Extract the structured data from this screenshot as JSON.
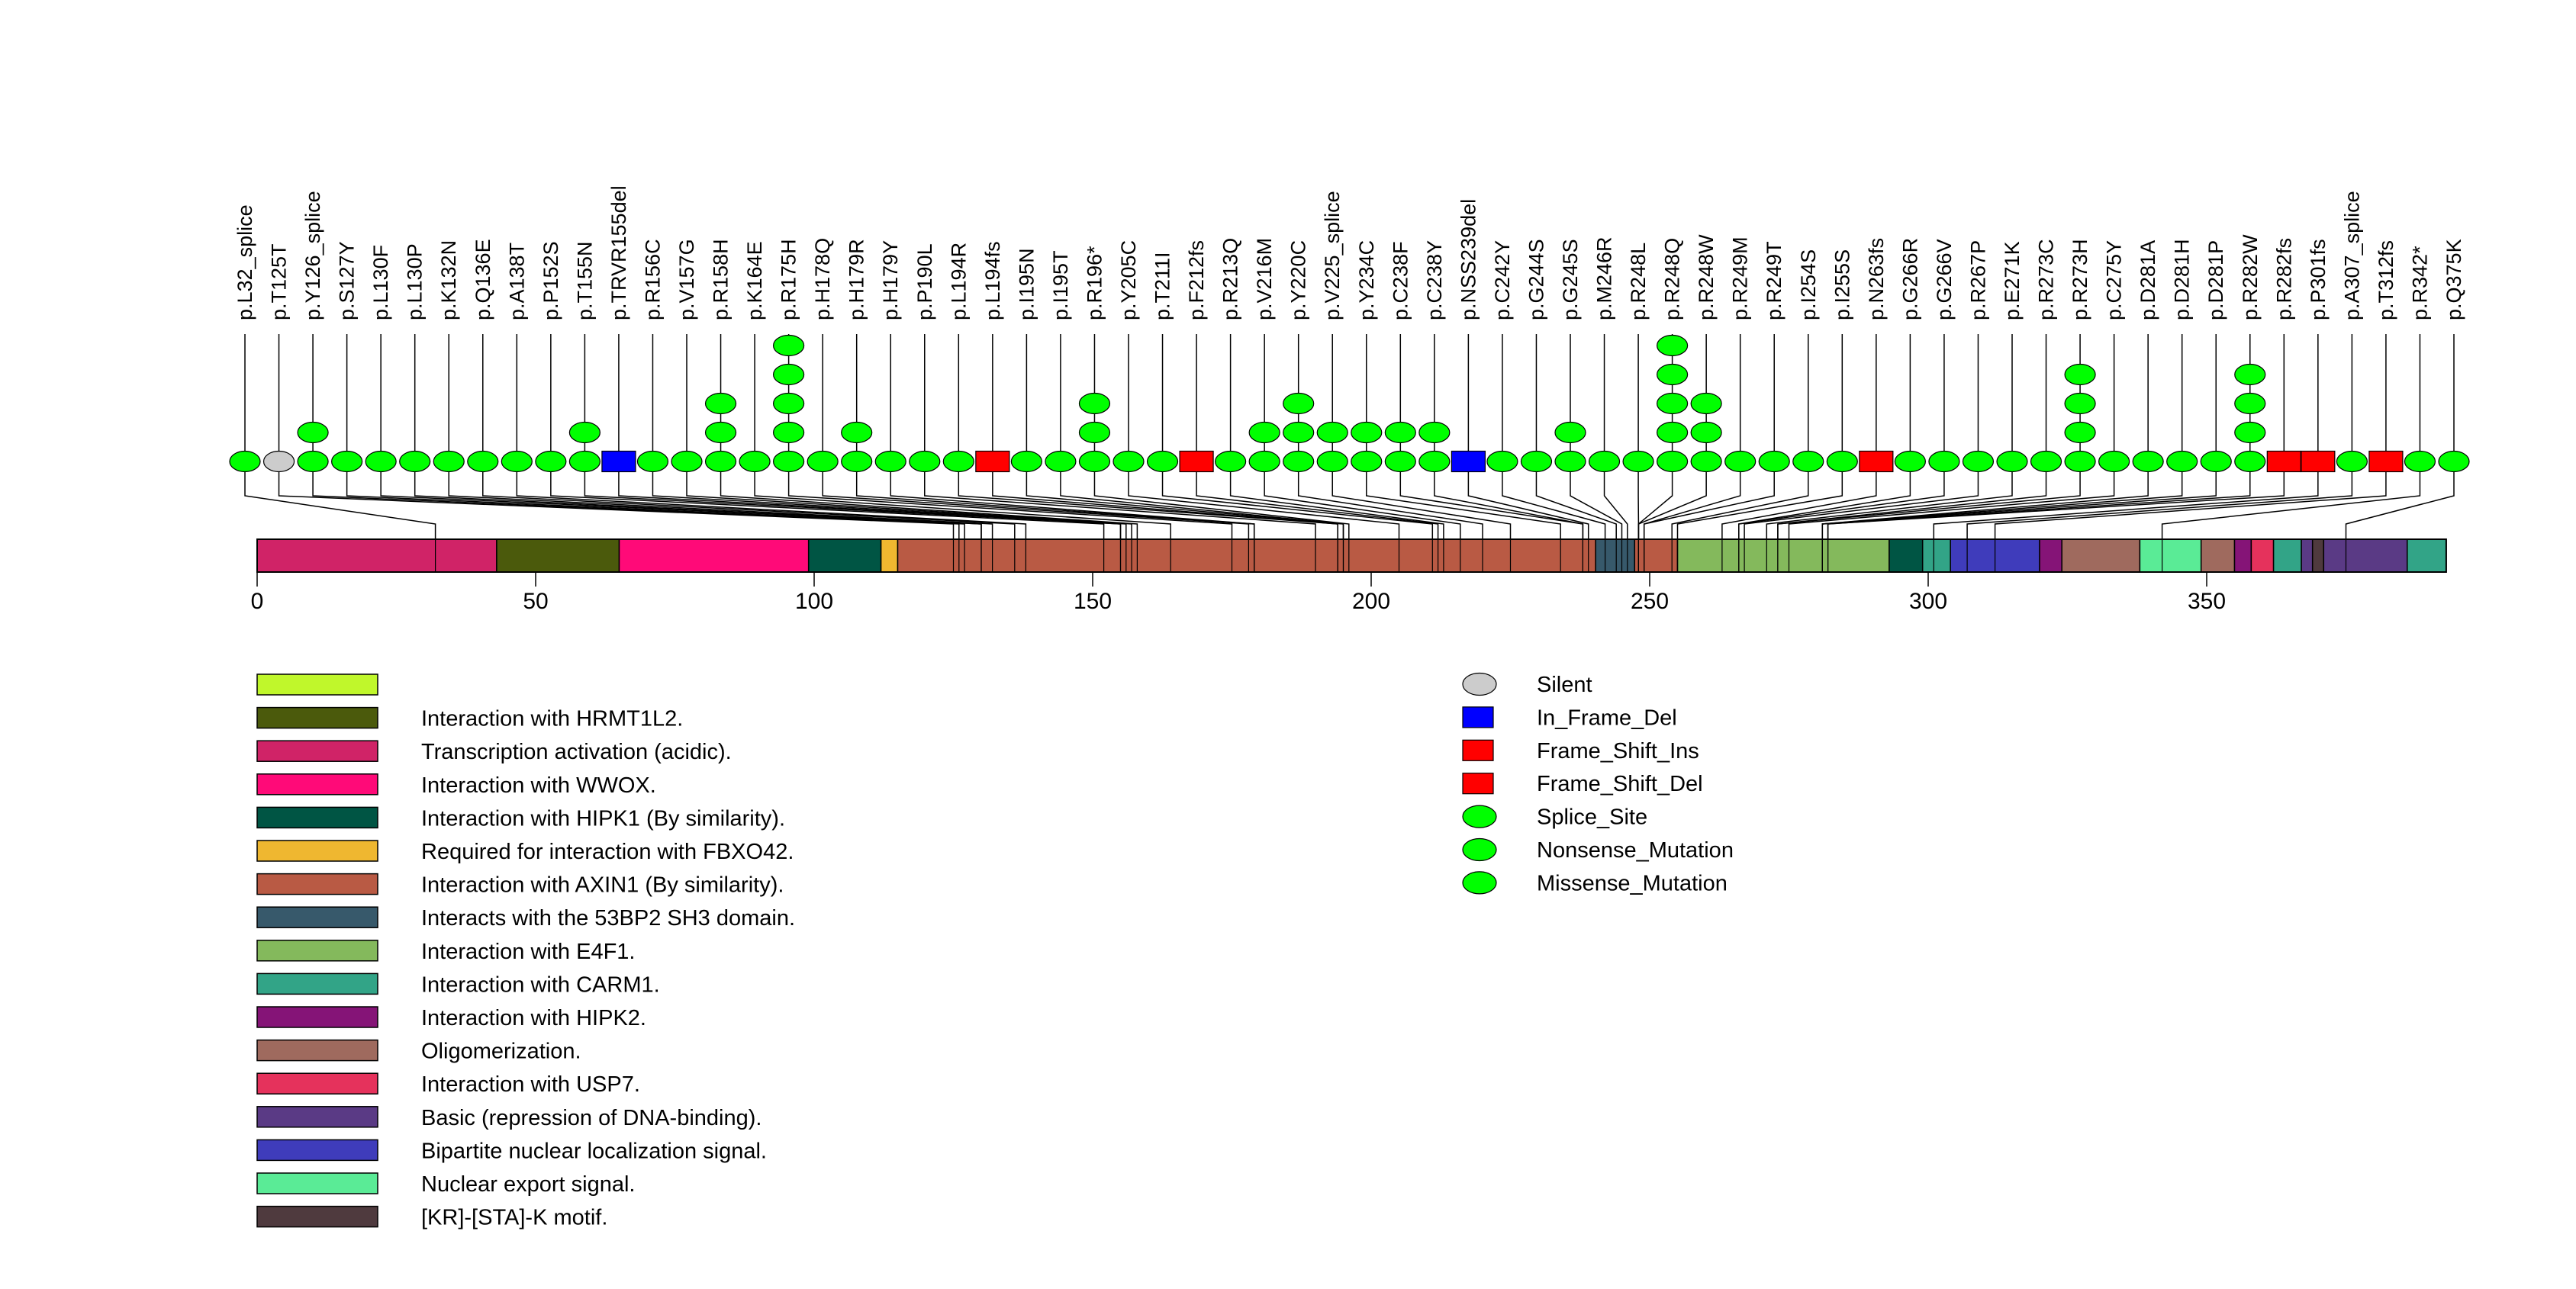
{
  "chart_data": {
    "type": "lollipop",
    "title": "",
    "protein_length": 393,
    "xlabel": "",
    "ylabel": "",
    "xlim": [
      0,
      393
    ],
    "x_ticks": [
      0,
      50,
      100,
      150,
      200,
      250,
      300,
      350
    ],
    "mutation_type_colors": {
      "Silent": "#cccccc",
      "In_Frame_Del": "#0000ff",
      "Frame_Shift_Ins": "#ff0000",
      "Frame_Shift_Del": "#ff0000",
      "Splice_Site": "#00ff00",
      "Nonsense_Mutation": "#00ff00",
      "Missense_Mutation": "#00ff00"
    },
    "mutation_type_shapes": {
      "Silent": "ellipse",
      "In_Frame_Del": "square",
      "Frame_Shift_Ins": "square",
      "Frame_Shift_Del": "square",
      "Splice_Site": "ellipse",
      "Nonsense_Mutation": "ellipse",
      "Missense_Mutation": "ellipse"
    },
    "mutations": [
      {
        "label": "p.L32_splice",
        "position": 32,
        "count": 1,
        "type": "Splice_Site"
      },
      {
        "label": "p.T125T",
        "position": 125,
        "count": 1,
        "type": "Silent"
      },
      {
        "label": "p.Y126_splice",
        "position": 126,
        "count": 2,
        "type": "Splice_Site"
      },
      {
        "label": "p.S127Y",
        "position": 127,
        "count": 1,
        "type": "Missense_Mutation"
      },
      {
        "label": "p.L130F",
        "position": 130,
        "count": 1,
        "type": "Missense_Mutation"
      },
      {
        "label": "p.L130P",
        "position": 130,
        "count": 1,
        "type": "Missense_Mutation"
      },
      {
        "label": "p.K132N",
        "position": 132,
        "count": 1,
        "type": "Missense_Mutation"
      },
      {
        "label": "p.Q136E",
        "position": 136,
        "count": 1,
        "type": "Missense_Mutation"
      },
      {
        "label": "p.A138T",
        "position": 138,
        "count": 1,
        "type": "Missense_Mutation"
      },
      {
        "label": "p.P152S",
        "position": 152,
        "count": 1,
        "type": "Missense_Mutation"
      },
      {
        "label": "p.T155N",
        "position": 155,
        "count": 2,
        "type": "Missense_Mutation"
      },
      {
        "label": "p.TRVR155del",
        "position": 155,
        "count": 1,
        "type": "In_Frame_Del"
      },
      {
        "label": "p.R156C",
        "position": 156,
        "count": 1,
        "type": "Missense_Mutation"
      },
      {
        "label": "p.V157G",
        "position": 157,
        "count": 1,
        "type": "Missense_Mutation"
      },
      {
        "label": "p.R158H",
        "position": 158,
        "count": 3,
        "type": "Missense_Mutation"
      },
      {
        "label": "p.K164E",
        "position": 164,
        "count": 1,
        "type": "Missense_Mutation"
      },
      {
        "label": "p.R175H",
        "position": 175,
        "count": 5,
        "type": "Missense_Mutation"
      },
      {
        "label": "p.H178Q",
        "position": 178,
        "count": 1,
        "type": "Missense_Mutation"
      },
      {
        "label": "p.H179R",
        "position": 179,
        "count": 2,
        "type": "Missense_Mutation"
      },
      {
        "label": "p.H179Y",
        "position": 179,
        "count": 1,
        "type": "Missense_Mutation"
      },
      {
        "label": "p.P190L",
        "position": 190,
        "count": 1,
        "type": "Missense_Mutation"
      },
      {
        "label": "p.L194R",
        "position": 194,
        "count": 1,
        "type": "Missense_Mutation"
      },
      {
        "label": "p.L194fs",
        "position": 194,
        "count": 1,
        "type": "Frame_Shift_Del"
      },
      {
        "label": "p.I195N",
        "position": 195,
        "count": 1,
        "type": "Missense_Mutation"
      },
      {
        "label": "p.I195T",
        "position": 195,
        "count": 1,
        "type": "Missense_Mutation"
      },
      {
        "label": "p.R196*",
        "position": 196,
        "count": 3,
        "type": "Nonsense_Mutation"
      },
      {
        "label": "p.Y205C",
        "position": 205,
        "count": 1,
        "type": "Missense_Mutation"
      },
      {
        "label": "p.T211I",
        "position": 211,
        "count": 1,
        "type": "Missense_Mutation"
      },
      {
        "label": "p.F212fs",
        "position": 212,
        "count": 1,
        "type": "Frame_Shift_Del"
      },
      {
        "label": "p.R213Q",
        "position": 213,
        "count": 1,
        "type": "Missense_Mutation"
      },
      {
        "label": "p.V216M",
        "position": 216,
        "count": 2,
        "type": "Missense_Mutation"
      },
      {
        "label": "p.Y220C",
        "position": 220,
        "count": 3,
        "type": "Missense_Mutation"
      },
      {
        "label": "p.V225_splice",
        "position": 225,
        "count": 2,
        "type": "Splice_Site"
      },
      {
        "label": "p.Y234C",
        "position": 234,
        "count": 2,
        "type": "Missense_Mutation"
      },
      {
        "label": "p.C238F",
        "position": 238,
        "count": 2,
        "type": "Missense_Mutation"
      },
      {
        "label": "p.C238Y",
        "position": 238,
        "count": 2,
        "type": "Missense_Mutation"
      },
      {
        "label": "p.NSS239del",
        "position": 239,
        "count": 1,
        "type": "In_Frame_Del"
      },
      {
        "label": "p.C242Y",
        "position": 242,
        "count": 1,
        "type": "Missense_Mutation"
      },
      {
        "label": "p.G244S",
        "position": 244,
        "count": 1,
        "type": "Missense_Mutation"
      },
      {
        "label": "p.G245S",
        "position": 245,
        "count": 2,
        "type": "Missense_Mutation"
      },
      {
        "label": "p.M246R",
        "position": 246,
        "count": 1,
        "type": "Missense_Mutation"
      },
      {
        "label": "p.R248L",
        "position": 248,
        "count": 1,
        "type": "Missense_Mutation"
      },
      {
        "label": "p.R248Q",
        "position": 248,
        "count": 5,
        "type": "Missense_Mutation"
      },
      {
        "label": "p.R248W",
        "position": 248,
        "count": 3,
        "type": "Missense_Mutation"
      },
      {
        "label": "p.R249M",
        "position": 249,
        "count": 1,
        "type": "Missense_Mutation"
      },
      {
        "label": "p.R249T",
        "position": 249,
        "count": 1,
        "type": "Missense_Mutation"
      },
      {
        "label": "p.I254S",
        "position": 254,
        "count": 1,
        "type": "Missense_Mutation"
      },
      {
        "label": "p.I255S",
        "position": 255,
        "count": 1,
        "type": "Missense_Mutation"
      },
      {
        "label": "p.N263fs",
        "position": 263,
        "count": 1,
        "type": "Frame_Shift_Ins"
      },
      {
        "label": "p.G266R",
        "position": 266,
        "count": 1,
        "type": "Missense_Mutation"
      },
      {
        "label": "p.G266V",
        "position": 266,
        "count": 1,
        "type": "Missense_Mutation"
      },
      {
        "label": "p.R267P",
        "position": 267,
        "count": 1,
        "type": "Missense_Mutation"
      },
      {
        "label": "p.E271K",
        "position": 271,
        "count": 1,
        "type": "Missense_Mutation"
      },
      {
        "label": "p.R273C",
        "position": 273,
        "count": 1,
        "type": "Missense_Mutation"
      },
      {
        "label": "p.R273H",
        "position": 273,
        "count": 4,
        "type": "Missense_Mutation"
      },
      {
        "label": "p.C275Y",
        "position": 275,
        "count": 1,
        "type": "Missense_Mutation"
      },
      {
        "label": "p.D281A",
        "position": 281,
        "count": 1,
        "type": "Missense_Mutation"
      },
      {
        "label": "p.D281H",
        "position": 281,
        "count": 1,
        "type": "Missense_Mutation"
      },
      {
        "label": "p.D281P",
        "position": 281,
        "count": 1,
        "type": "Missense_Mutation"
      },
      {
        "label": "p.R282W",
        "position": 282,
        "count": 4,
        "type": "Missense_Mutation"
      },
      {
        "label": "p.R282fs",
        "position": 282,
        "count": 1,
        "type": "Frame_Shift_Del"
      },
      {
        "label": "p.P301fs",
        "position": 301,
        "count": 1,
        "type": "Frame_Shift_Del"
      },
      {
        "label": "p.A307_splice",
        "position": 307,
        "count": 1,
        "type": "Splice_Site"
      },
      {
        "label": "p.T312fs",
        "position": 312,
        "count": 1,
        "type": "Frame_Shift_Del"
      },
      {
        "label": "p.R342*",
        "position": 342,
        "count": 1,
        "type": "Nonsense_Mutation"
      },
      {
        "label": "p.Q375K",
        "position": 375,
        "count": 1,
        "type": "Missense_Mutation"
      }
    ],
    "domains": [
      {
        "name": "Transcription activation (acidic).",
        "start": 0,
        "end": 43,
        "color": "#d02367"
      },
      {
        "name": "Interaction with HRMT1L2.",
        "start": 43,
        "end": 65,
        "color": "#4b5a0c"
      },
      {
        "name": "Interaction with WWOX.",
        "start": 65,
        "end": 99,
        "color": "#ff0a78"
      },
      {
        "name": "Interaction with HIPK1 (By similarity).",
        "start": 99,
        "end": 112,
        "color": "#005544"
      },
      {
        "name": "Required for interaction with FBXO42.",
        "start": 112,
        "end": 115,
        "color": "#efb730"
      },
      {
        "name": "Interaction with AXIN1 (By similarity).",
        "start": 115,
        "end": 240.3,
        "color": "#b95a44"
      },
      {
        "name": "Interacts with the 53BP2 SH3 domain.",
        "start": 240.3,
        "end": 247.3,
        "color": "#37596b"
      },
      {
        "name": "Interaction with AXIN1 (By similarity).",
        "start": 247.3,
        "end": 255,
        "color": "#b95a44"
      },
      {
        "name": "Interaction with E4F1.",
        "start": 255,
        "end": 293,
        "color": "#84b95c"
      },
      {
        "name": "Interaction with HIPK1 (By similarity).",
        "start": 293,
        "end": 299,
        "color": "#005544"
      },
      {
        "name": "Interaction with CARM1.",
        "start": 299,
        "end": 304,
        "color": "#32a487"
      },
      {
        "name": "Bipartite nuclear localization signal.",
        "start": 304,
        "end": 320,
        "color": "#3f3cbb"
      },
      {
        "name": "Interaction with HIPK2.",
        "start": 320,
        "end": 324,
        "color": "#851477"
      },
      {
        "name": "Oligomerization.",
        "start": 324,
        "end": 338,
        "color": "#9f6a5e"
      },
      {
        "name": "Nuclear export signal.",
        "start": 338,
        "end": 349,
        "color": "#5aeb96"
      },
      {
        "name": "Oligomerization.",
        "start": 349,
        "end": 355,
        "color": "#9f6a5e"
      },
      {
        "name": "Interaction with HIPK2.",
        "start": 355,
        "end": 358,
        "color": "#851477"
      },
      {
        "name": "Interaction with USP7.",
        "start": 358,
        "end": 362,
        "color": "#e5325c"
      },
      {
        "name": "Interaction with CARM1.",
        "start": 362,
        "end": 367,
        "color": "#32a487"
      },
      {
        "name": "Basic (repression of DNA-binding).",
        "start": 367,
        "end": 369,
        "color": "#5a3a85"
      },
      {
        "name": "[KR]-[STA]-K motif.",
        "start": 369,
        "end": 371,
        "color": "#4f3a3e"
      },
      {
        "name": "Basic (repression of DNA-binding).",
        "start": 371,
        "end": 386,
        "color": "#5a3a85"
      },
      {
        "name": "Interaction with CARM1.",
        "start": 386,
        "end": 393,
        "color": "#32a487"
      }
    ],
    "domain_legend": [
      {
        "label": "",
        "color": "#c0f72b"
      },
      {
        "label": "Interaction with HRMT1L2.",
        "color": "#4b5a0c"
      },
      {
        "label": "Transcription activation (acidic).",
        "color": "#d02367"
      },
      {
        "label": "Interaction with WWOX.",
        "color": "#ff0a78"
      },
      {
        "label": "Interaction with HIPK1 (By similarity).",
        "color": "#005544"
      },
      {
        "label": "Required for interaction with FBXO42.",
        "color": "#efb730"
      },
      {
        "label": "Interaction with AXIN1 (By similarity).",
        "color": "#b95a44"
      },
      {
        "label": "Interacts with the 53BP2 SH3 domain.",
        "color": "#37596b"
      },
      {
        "label": "Interaction with E4F1.",
        "color": "#84b95c"
      },
      {
        "label": "Interaction with CARM1.",
        "color": "#32a487"
      },
      {
        "label": "Interaction with HIPK2.",
        "color": "#851477"
      },
      {
        "label": "Oligomerization.",
        "color": "#9f6a5e"
      },
      {
        "label": "Interaction with USP7.",
        "color": "#e5325c"
      },
      {
        "label": "Basic (repression of DNA-binding).",
        "color": "#5a3a85"
      },
      {
        "label": "Bipartite nuclear localization signal.",
        "color": "#3f3cbb"
      },
      {
        "label": "Nuclear export signal.",
        "color": "#5aeb96"
      },
      {
        "label": "[KR]-[STA]-K motif.",
        "color": "#4f3a3e"
      }
    ],
    "mutation_legend": [
      {
        "label": "Silent",
        "shape": "ellipse",
        "color": "#cccccc"
      },
      {
        "label": "In_Frame_Del",
        "shape": "square",
        "color": "#0000ff"
      },
      {
        "label": "Frame_Shift_Ins",
        "shape": "square",
        "color": "#ff0000"
      },
      {
        "label": "Frame_Shift_Del",
        "shape": "square",
        "color": "#ff0000"
      },
      {
        "label": "Splice_Site",
        "shape": "ellipse",
        "color": "#00ff00"
      },
      {
        "label": "Nonsense_Mutation",
        "shape": "ellipse",
        "color": "#00ff00"
      },
      {
        "label": "Missense_Mutation",
        "shape": "ellipse",
        "color": "#00ff00"
      }
    ]
  }
}
